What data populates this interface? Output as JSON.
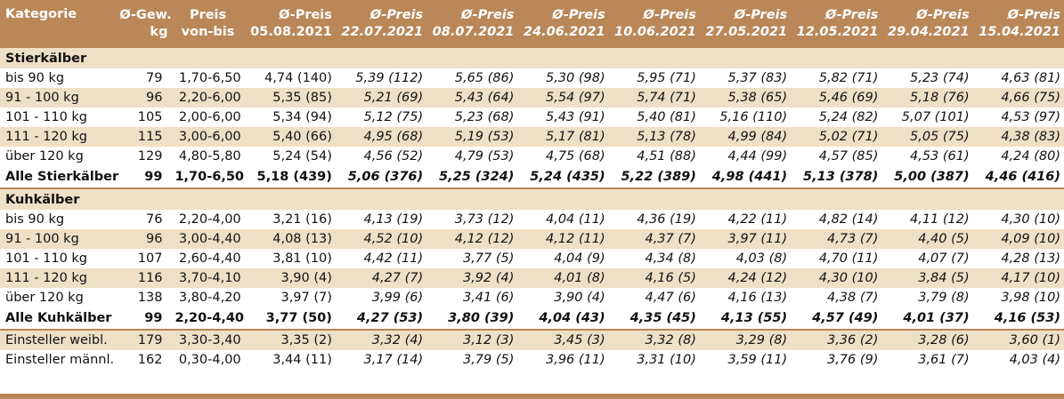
{
  "header": {
    "kategorie": "Kategorie",
    "gew": [
      "Ø-Gew.",
      "kg"
    ],
    "preis": [
      "Preis",
      "von-bis"
    ],
    "dates": [
      [
        "Ø-Preis",
        "05.08.2021"
      ],
      [
        "Ø-Preis",
        "22.07.2021"
      ],
      [
        "Ø-Preis",
        "08.07.2021"
      ],
      [
        "Ø-Preis",
        "24.06.2021"
      ],
      [
        "Ø-Preis",
        "10.06.2021"
      ],
      [
        "Ø-Preis",
        "27.05.2021"
      ],
      [
        "Ø-Preis",
        "12.05.2021"
      ],
      [
        "Ø-Preis",
        "29.04.2021"
      ],
      [
        "Ø-Preis",
        "15.04.2021"
      ]
    ]
  },
  "sections": [
    {
      "title": "Stierkälber",
      "rows": [
        {
          "cat": "bis 90 kg",
          "gew": "79",
          "range": "1,70-6,50",
          "prices": [
            "4,74 (140)",
            "5,39 (112)",
            "5,65 (86)",
            "5,30 (98)",
            "5,95 (71)",
            "5,37 (83)",
            "5,82 (71)",
            "5,23 (74)",
            "4,63 (81)"
          ]
        },
        {
          "cat": "91 - 100 kg",
          "gew": "96",
          "range": "2,20-6,00",
          "prices": [
            "5,35 (85)",
            "5,21 (69)",
            "5,43 (64)",
            "5,54 (97)",
            "5,74 (71)",
            "5,38 (65)",
            "5,46 (69)",
            "5,18 (76)",
            "4,66 (75)"
          ]
        },
        {
          "cat": "101 - 110 kg",
          "gew": "105",
          "range": "2,00-6,00",
          "prices": [
            "5,34 (94)",
            "5,12 (75)",
            "5,23 (68)",
            "5,43 (91)",
            "5,40 (81)",
            "5,16 (110)",
            "5,24 (82)",
            "5,07 (101)",
            "4,53 (97)"
          ]
        },
        {
          "cat": "111 - 120 kg",
          "gew": "115",
          "range": "3,00-6,00",
          "prices": [
            "5,40 (66)",
            "4,95 (68)",
            "5,19 (53)",
            "5,17 (81)",
            "5,13 (78)",
            "4,99 (84)",
            "5,02 (71)",
            "5,05 (75)",
            "4,38 (83)"
          ]
        },
        {
          "cat": "über 120 kg",
          "gew": "129",
          "range": "4,80-5,80",
          "prices": [
            "5,24 (54)",
            "4,56 (52)",
            "4,79 (53)",
            "4,75 (68)",
            "4,51 (88)",
            "4,44 (99)",
            "4,57 (85)",
            "4,53 (61)",
            "4,24 (80)"
          ]
        }
      ],
      "total": {
        "cat": "Alle Stierkälber",
        "gew": "99",
        "range": "1,70-6,50",
        "prices": [
          "5,18 (439)",
          "5,06 (376)",
          "5,25 (324)",
          "5,24 (435)",
          "5,22 (389)",
          "4,98 (441)",
          "5,13 (378)",
          "5,00 (387)",
          "4,46 (416)"
        ]
      }
    },
    {
      "title": "Kuhkälber",
      "rows": [
        {
          "cat": "bis 90 kg",
          "gew": "76",
          "range": "2,20-4,00",
          "prices": [
            "3,21 (16)",
            "4,13 (19)",
            "3,73 (12)",
            "4,04 (11)",
            "4,36 (19)",
            "4,22 (11)",
            "4,82 (14)",
            "4,11 (12)",
            "4,30 (10)"
          ]
        },
        {
          "cat": "91 - 100 kg",
          "gew": "96",
          "range": "3,00-4,40",
          "prices": [
            "4,08 (13)",
            "4,52 (10)",
            "4,12 (12)",
            "4,12 (11)",
            "4,37 (7)",
            "3,97 (11)",
            "4,73 (7)",
            "4,40 (5)",
            "4,09 (10)"
          ]
        },
        {
          "cat": "101 - 110 kg",
          "gew": "107",
          "range": "2,60-4,40",
          "prices": [
            "3,81 (10)",
            "4,42 (11)",
            "3,77 (5)",
            "4,04 (9)",
            "4,34 (8)",
            "4,03 (8)",
            "4,70 (11)",
            "4,07 (7)",
            "4,28 (13)"
          ]
        },
        {
          "cat": "111 - 120 kg",
          "gew": "116",
          "range": "3,70-4,10",
          "prices": [
            "3,90 (4)",
            "4,27 (7)",
            "3,92 (4)",
            "4,01 (8)",
            "4,16 (5)",
            "4,24 (12)",
            "4,30 (10)",
            "3,84 (5)",
            "4,17 (10)"
          ]
        },
        {
          "cat": "über 120 kg",
          "gew": "138",
          "range": "3,80-4,20",
          "prices": [
            "3,97 (7)",
            "3,99 (6)",
            "3,41 (6)",
            "3,90 (4)",
            "4,47 (6)",
            "4,16 (13)",
            "4,38 (7)",
            "3,79 (8)",
            "3,98 (10)"
          ]
        }
      ],
      "total": {
        "cat": "Alle Kuhkälber",
        "gew": "99",
        "range": "2,20-4,40",
        "prices": [
          "3,77 (50)",
          "4,27 (53)",
          "3,80 (39)",
          "4,04 (43)",
          "4,35 (45)",
          "4,13 (55)",
          "4,57 (49)",
          "4,01 (37)",
          "4,16 (53)"
        ]
      }
    }
  ],
  "extra": [
    {
      "cat": "Einsteller weibl.",
      "gew": "179",
      "range": "3,30-3,40",
      "prices": [
        "3,35 (2)",
        "3,32 (4)",
        "3,12 (3)",
        "3,45 (3)",
        "3,32 (8)",
        "3,29 (8)",
        "3,36 (2)",
        "3,28 (6)",
        "3,60 (1)"
      ]
    },
    {
      "cat": "Einsteller männl.",
      "gew": "162",
      "range": "0,30-4,00",
      "prices": [
        "3,44 (11)",
        "3,17 (14)",
        "3,79 (5)",
        "3,96 (11)",
        "3,31 (10)",
        "3,59 (11)",
        "3,76 (9)",
        "3,61 (7)",
        "4,03 (4)"
      ]
    }
  ],
  "colors": {
    "header_bg": "#b98758",
    "band_bg": "#efdfc6",
    "header_text": "#ffffff"
  }
}
